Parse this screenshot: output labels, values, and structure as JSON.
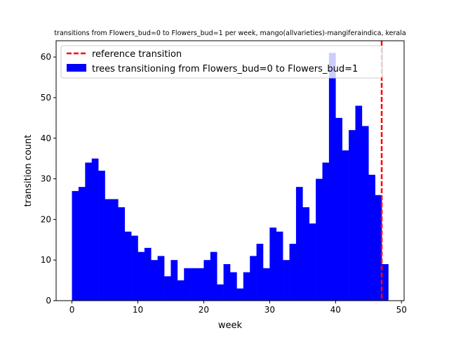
{
  "chart_data": {
    "type": "bar",
    "title": "transitions from Flowers_bud=0 to Flowers_bud=1 per week, mango(allvarieties)-mangiferaindica, kerala",
    "xlabel": "week",
    "ylabel": "transition count",
    "xlim": [
      -2.4,
      50.4
    ],
    "ylim": [
      0,
      64
    ],
    "x_ticks": [
      0,
      10,
      20,
      30,
      40,
      50
    ],
    "y_ticks": [
      0,
      10,
      20,
      30,
      40,
      50,
      60
    ],
    "bin_width": 1,
    "x": [
      0,
      1,
      2,
      3,
      4,
      5,
      6,
      7,
      8,
      9,
      10,
      11,
      12,
      13,
      14,
      15,
      16,
      17,
      18,
      19,
      20,
      21,
      22,
      23,
      24,
      25,
      26,
      27,
      28,
      29,
      30,
      31,
      32,
      33,
      34,
      35,
      36,
      37,
      38,
      39,
      40,
      41,
      42,
      43,
      44,
      45,
      46,
      47
    ],
    "values": [
      27,
      28,
      34,
      35,
      32,
      25,
      25,
      23,
      17,
      16,
      12,
      13,
      10,
      11,
      6,
      10,
      5,
      8,
      8,
      8,
      10,
      12,
      4,
      9,
      7,
      3,
      7,
      11,
      14,
      8,
      18,
      17,
      10,
      14,
      28,
      23,
      19,
      30,
      34,
      61,
      45,
      37,
      42,
      48,
      43,
      31,
      26,
      9
    ],
    "series_name": "trees transitioning from Flowers_bud=0 to Flowers_bud=1",
    "bar_color": "#0000ff",
    "reference_line": {
      "name": "reference transition",
      "x": 47,
      "color": "#ff0000",
      "style": "dashed"
    },
    "legend_position": "upper-left",
    "grid": false
  }
}
